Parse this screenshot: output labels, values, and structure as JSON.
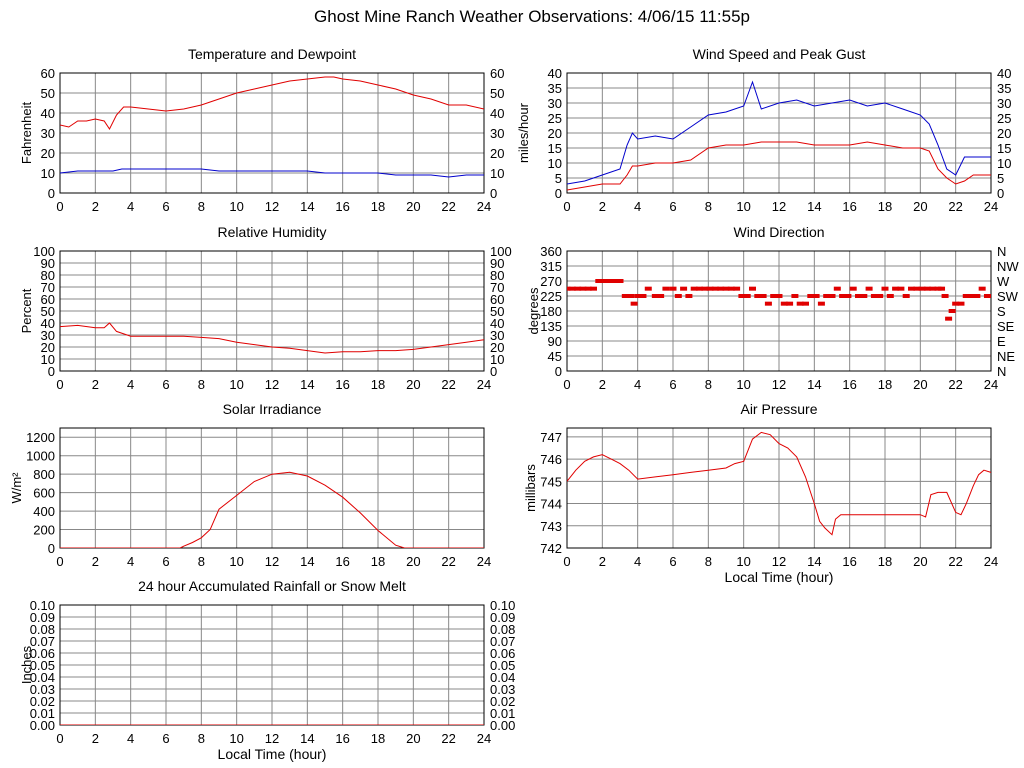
{
  "page": {
    "title": "Ghost Mine Ranch Weather Observations: 4/06/15 11:55p"
  },
  "colors": {
    "red": "#e00000",
    "blue": "#0000cc",
    "grid": "#888888",
    "axis": "#000000"
  },
  "chart_data": [
    {
      "id": "temperature",
      "type": "line",
      "title": "Temperature and Dewpoint",
      "xlabel": "",
      "ylabel": "Fahrenheit",
      "xlim": [
        0,
        24
      ],
      "ylim": [
        0,
        60
      ],
      "xticks": [
        "0",
        "2",
        "4",
        "6",
        "8",
        "10",
        "12",
        "14",
        "16",
        "18",
        "20",
        "22",
        "24"
      ],
      "yticks": [
        "0",
        "10",
        "20",
        "30",
        "40",
        "50",
        "60"
      ],
      "right_ticks": [
        "0",
        "10",
        "20",
        "30",
        "40",
        "50",
        "60"
      ],
      "series": [
        {
          "name": "Temperature",
          "color": "#e00000",
          "x": [
            0,
            0.5,
            1,
            1.5,
            2,
            2.5,
            2.8,
            3.2,
            3.6,
            4,
            5,
            6,
            7,
            8,
            9,
            10,
            11,
            12,
            13,
            14,
            15,
            15.5,
            16,
            17,
            18,
            19,
            20,
            21,
            22,
            23,
            24
          ],
          "y": [
            34,
            33,
            36,
            36,
            37,
            36,
            32,
            39,
            43,
            43,
            42,
            41,
            42,
            44,
            47,
            50,
            52,
            54,
            56,
            57,
            58,
            58,
            57,
            56,
            54,
            52,
            49,
            47,
            44,
            44,
            42
          ]
        },
        {
          "name": "Dewpoint",
          "color": "#0000cc",
          "x": [
            0,
            1,
            2,
            3,
            3.5,
            4,
            5,
            6,
            7,
            8,
            9,
            10,
            11,
            12,
            13,
            14,
            15,
            16,
            17,
            18,
            19,
            20,
            21,
            22,
            23,
            24
          ],
          "y": [
            10,
            11,
            11,
            11,
            12,
            12,
            12,
            12,
            12,
            12,
            11,
            11,
            11,
            11,
            11,
            11,
            10,
            10,
            10,
            10,
            9,
            9,
            9,
            8,
            9,
            9
          ]
        }
      ]
    },
    {
      "id": "wind-speed",
      "type": "line",
      "title": "Wind Speed and Peak Gust",
      "xlabel": "",
      "ylabel": "miles/hour",
      "xlim": [
        0,
        24
      ],
      "ylim": [
        0,
        40
      ],
      "xticks": [
        "0",
        "2",
        "4",
        "6",
        "8",
        "10",
        "12",
        "14",
        "16",
        "18",
        "20",
        "22",
        "24"
      ],
      "yticks": [
        "0",
        "5",
        "10",
        "15",
        "20",
        "25",
        "30",
        "35",
        "40"
      ],
      "right_ticks": [
        "0",
        "5",
        "10",
        "15",
        "20",
        "25",
        "30",
        "35",
        "40"
      ],
      "series": [
        {
          "name": "Peak Gust",
          "color": "#0000cc",
          "x": [
            0,
            1,
            2,
            3,
            3.4,
            3.7,
            4,
            5,
            6,
            7,
            8,
            9,
            10,
            10.5,
            11,
            12,
            13,
            14,
            15,
            16,
            17,
            18,
            19,
            20,
            20.5,
            21,
            21.5,
            22,
            22.5,
            23,
            24
          ],
          "y": [
            3,
            4,
            6,
            8,
            16,
            20,
            18,
            19,
            18,
            22,
            26,
            27,
            29,
            37,
            28,
            30,
            31,
            29,
            30,
            31,
            29,
            30,
            28,
            26,
            23,
            16,
            8,
            6,
            12,
            12,
            12
          ]
        },
        {
          "name": "Wind Speed",
          "color": "#e00000",
          "x": [
            0,
            1,
            2,
            3,
            3.4,
            3.7,
            4,
            5,
            6,
            7,
            8,
            9,
            10,
            11,
            12,
            13,
            14,
            15,
            16,
            17,
            18,
            19,
            20,
            20.5,
            21,
            21.5,
            22,
            22.5,
            23,
            24
          ],
          "y": [
            1,
            2,
            3,
            3,
            6,
            9,
            9,
            10,
            10,
            11,
            15,
            16,
            16,
            17,
            17,
            17,
            16,
            16,
            16,
            17,
            16,
            15,
            15,
            14,
            8,
            5,
            3,
            4,
            6,
            6
          ]
        }
      ]
    },
    {
      "id": "humidity",
      "type": "line",
      "title": "Relative Humidity",
      "xlabel": "",
      "ylabel": "Percent",
      "xlim": [
        0,
        24
      ],
      "ylim": [
        0,
        100
      ],
      "xticks": [
        "0",
        "2",
        "4",
        "6",
        "8",
        "10",
        "12",
        "14",
        "16",
        "18",
        "20",
        "22",
        "24"
      ],
      "yticks": [
        "0",
        "10",
        "20",
        "30",
        "40",
        "50",
        "60",
        "70",
        "80",
        "90",
        "100"
      ],
      "right_ticks": [
        "0",
        "10",
        "20",
        "30",
        "40",
        "50",
        "60",
        "70",
        "80",
        "90",
        "100"
      ],
      "series": [
        {
          "name": "Relative Humidity",
          "color": "#e00000",
          "x": [
            0,
            1,
            2,
            2.5,
            2.8,
            3.2,
            4,
            5,
            6,
            7,
            8,
            9,
            10,
            11,
            12,
            13,
            14,
            15,
            16,
            17,
            18,
            19,
            20,
            21,
            22,
            23,
            24
          ],
          "y": [
            37,
            38,
            36,
            36,
            40,
            33,
            29,
            29,
            29,
            29,
            28,
            27,
            24,
            22,
            20,
            19,
            17,
            15,
            16,
            16,
            17,
            17,
            18,
            20,
            22,
            24,
            26
          ]
        }
      ]
    },
    {
      "id": "wind-direction",
      "type": "scatter",
      "title": "Wind Direction",
      "xlabel": "",
      "ylabel": "degrees",
      "xlim": [
        0,
        24
      ],
      "ylim": [
        0,
        360
      ],
      "xticks": [
        "0",
        "2",
        "4",
        "6",
        "8",
        "10",
        "12",
        "14",
        "16",
        "18",
        "20",
        "22",
        "24"
      ],
      "yticks": [
        "0",
        "45",
        "90",
        "135",
        "180",
        "225",
        "270",
        "315",
        "360"
      ],
      "right_ticks": [
        "N",
        "NE",
        "E",
        "SE",
        "S",
        "SW",
        "W",
        "NW",
        "N"
      ],
      "series": [
        {
          "name": "Wind Direction",
          "color": "#e00000",
          "x": [
            0,
            0.3,
            0.6,
            0.9,
            1.2,
            1.5,
            1.8,
            2.1,
            2.4,
            2.7,
            3.0,
            3.3,
            3.6,
            3.8,
            4.0,
            4.3,
            4.6,
            5.0,
            5.3,
            5.6,
            6.0,
            6.3,
            6.6,
            6.9,
            7.2,
            7.5,
            7.8,
            8.1,
            8.4,
            8.7,
            9.0,
            9.3,
            9.6,
            9.9,
            10.2,
            10.5,
            10.8,
            11.1,
            11.4,
            11.7,
            12.0,
            12.3,
            12.6,
            12.9,
            13.2,
            13.5,
            13.8,
            14.1,
            14.4,
            14.7,
            15.0,
            15.3,
            15.6,
            15.9,
            16.2,
            16.5,
            16.8,
            17.1,
            17.4,
            17.7,
            18.0,
            18.3,
            18.6,
            18.9,
            19.2,
            19.5,
            19.8,
            20.1,
            20.4,
            20.7,
            21.0,
            21.2,
            21.4,
            21.6,
            21.8,
            22.0,
            22.3,
            22.6,
            22.9,
            23.2,
            23.5,
            23.8
          ],
          "y": [
            247,
            247,
            247,
            247,
            247,
            247,
            270,
            270,
            270,
            270,
            270,
            225,
            225,
            202,
            225,
            225,
            247,
            225,
            225,
            247,
            247,
            225,
            247,
            225,
            247,
            247,
            247,
            247,
            247,
            247,
            247,
            247,
            247,
            225,
            225,
            247,
            225,
            225,
            202,
            225,
            225,
            202,
            202,
            225,
            202,
            202,
            225,
            225,
            202,
            225,
            225,
            247,
            225,
            225,
            247,
            225,
            225,
            247,
            225,
            225,
            247,
            225,
            247,
            247,
            225,
            247,
            247,
            247,
            247,
            247,
            247,
            247,
            225,
            157,
            180,
            202,
            202,
            225,
            225,
            225,
            247,
            225
          ]
        }
      ]
    },
    {
      "id": "solar",
      "type": "line",
      "title": "Solar Irradiance",
      "xlabel": "",
      "ylabel": "W/m²",
      "xlim": [
        0,
        24
      ],
      "ylim": [
        0,
        1300
      ],
      "xticks": [
        "0",
        "2",
        "4",
        "6",
        "8",
        "10",
        "12",
        "14",
        "16",
        "18",
        "20",
        "22",
        "24"
      ],
      "yticks": [
        "0",
        "200",
        "400",
        "600",
        "800",
        "1000",
        "1200"
      ],
      "right_ticks": [],
      "series": [
        {
          "name": "Solar Irradiance",
          "color": "#e00000",
          "x": [
            0,
            6.8,
            7,
            7.5,
            8,
            8.5,
            9,
            10,
            11,
            12,
            13,
            14,
            15,
            16,
            17,
            18,
            19,
            19.5,
            20,
            24
          ],
          "y": [
            0,
            0,
            20,
            60,
            110,
            200,
            420,
            570,
            720,
            800,
            820,
            780,
            680,
            550,
            380,
            190,
            30,
            0,
            0,
            0
          ]
        }
      ]
    },
    {
      "id": "pressure",
      "type": "line",
      "title": "Air Pressure",
      "xlabel": "Local Time (hour)",
      "ylabel": "millibars",
      "xlim": [
        0,
        24
      ],
      "ylim": [
        742,
        747.4
      ],
      "xticks": [
        "0",
        "2",
        "4",
        "6",
        "8",
        "10",
        "12",
        "14",
        "16",
        "18",
        "20",
        "22",
        "24"
      ],
      "yticks": [
        "742",
        "743",
        "744",
        "745",
        "746",
        "747"
      ],
      "right_ticks": [],
      "series": [
        {
          "name": "Air Pressure",
          "color": "#e00000",
          "x": [
            0,
            0.5,
            1,
            1.5,
            2,
            2.5,
            3,
            3.5,
            4,
            5,
            6,
            7,
            8,
            9,
            9.5,
            10,
            10.5,
            11,
            11.5,
            12,
            12.5,
            13,
            13.5,
            14,
            14.3,
            14.6,
            15,
            15.2,
            15.5,
            16,
            17,
            18,
            19,
            20,
            20.3,
            20.6,
            21,
            21.5,
            22,
            22.3,
            22.6,
            23,
            23.3,
            23.6,
            24
          ],
          "y": [
            745,
            745.5,
            745.9,
            746.1,
            746.2,
            746,
            745.8,
            745.5,
            745.1,
            745.2,
            745.3,
            745.4,
            745.5,
            745.6,
            745.8,
            745.9,
            746.9,
            747.2,
            747.1,
            746.7,
            746.5,
            746.1,
            745.2,
            744,
            743.2,
            742.9,
            742.6,
            743.3,
            743.5,
            743.5,
            743.5,
            743.5,
            743.5,
            743.5,
            743.4,
            744.4,
            744.5,
            744.5,
            743.6,
            743.5,
            744,
            744.8,
            745.3,
            745.5,
            745.4
          ]
        }
      ]
    },
    {
      "id": "rainfall",
      "type": "line",
      "title": "24 hour Accumulated Rainfall or Snow Melt",
      "xlabel": "Local Time (hour)",
      "ylabel": "Inches",
      "xlim": [
        0,
        24
      ],
      "ylim": [
        0,
        0.1
      ],
      "xticks": [
        "0",
        "2",
        "4",
        "6",
        "8",
        "10",
        "12",
        "14",
        "16",
        "18",
        "20",
        "22",
        "24"
      ],
      "yticks": [
        "0.00",
        "0.01",
        "0.02",
        "0.03",
        "0.04",
        "0.05",
        "0.06",
        "0.07",
        "0.08",
        "0.09",
        "0.10"
      ],
      "right_ticks": [
        "0.00",
        "0.01",
        "0.02",
        "0.03",
        "0.04",
        "0.05",
        "0.06",
        "0.07",
        "0.08",
        "0.09",
        "0.10"
      ],
      "series": [
        {
          "name": "Rainfall",
          "color": "#e00000",
          "x": [
            0,
            24
          ],
          "y": [
            0,
            0
          ]
        }
      ]
    }
  ]
}
